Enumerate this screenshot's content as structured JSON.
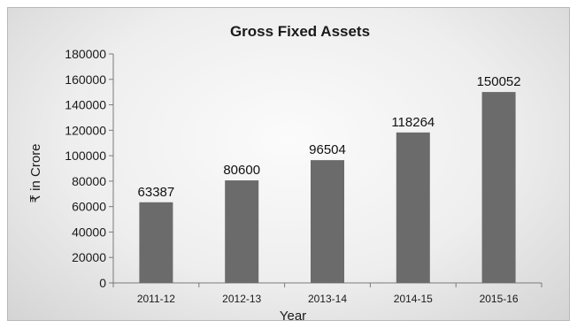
{
  "chart_data": {
    "type": "bar",
    "title": "Gross Fixed Assets",
    "xlabel": "Year",
    "ylabel": "₹ in Crore",
    "categories": [
      "2011-12",
      "2012-13",
      "2013-14",
      "2014-15",
      "2015-16"
    ],
    "values": [
      63387,
      80600,
      96504,
      118264,
      150052
    ],
    "ylim": [
      0,
      180000
    ],
    "yticks": [
      0,
      20000,
      40000,
      60000,
      80000,
      100000,
      120000,
      140000,
      160000,
      180000
    ],
    "bar_color": "#6b6b6b",
    "grid": false,
    "legend": "none"
  }
}
